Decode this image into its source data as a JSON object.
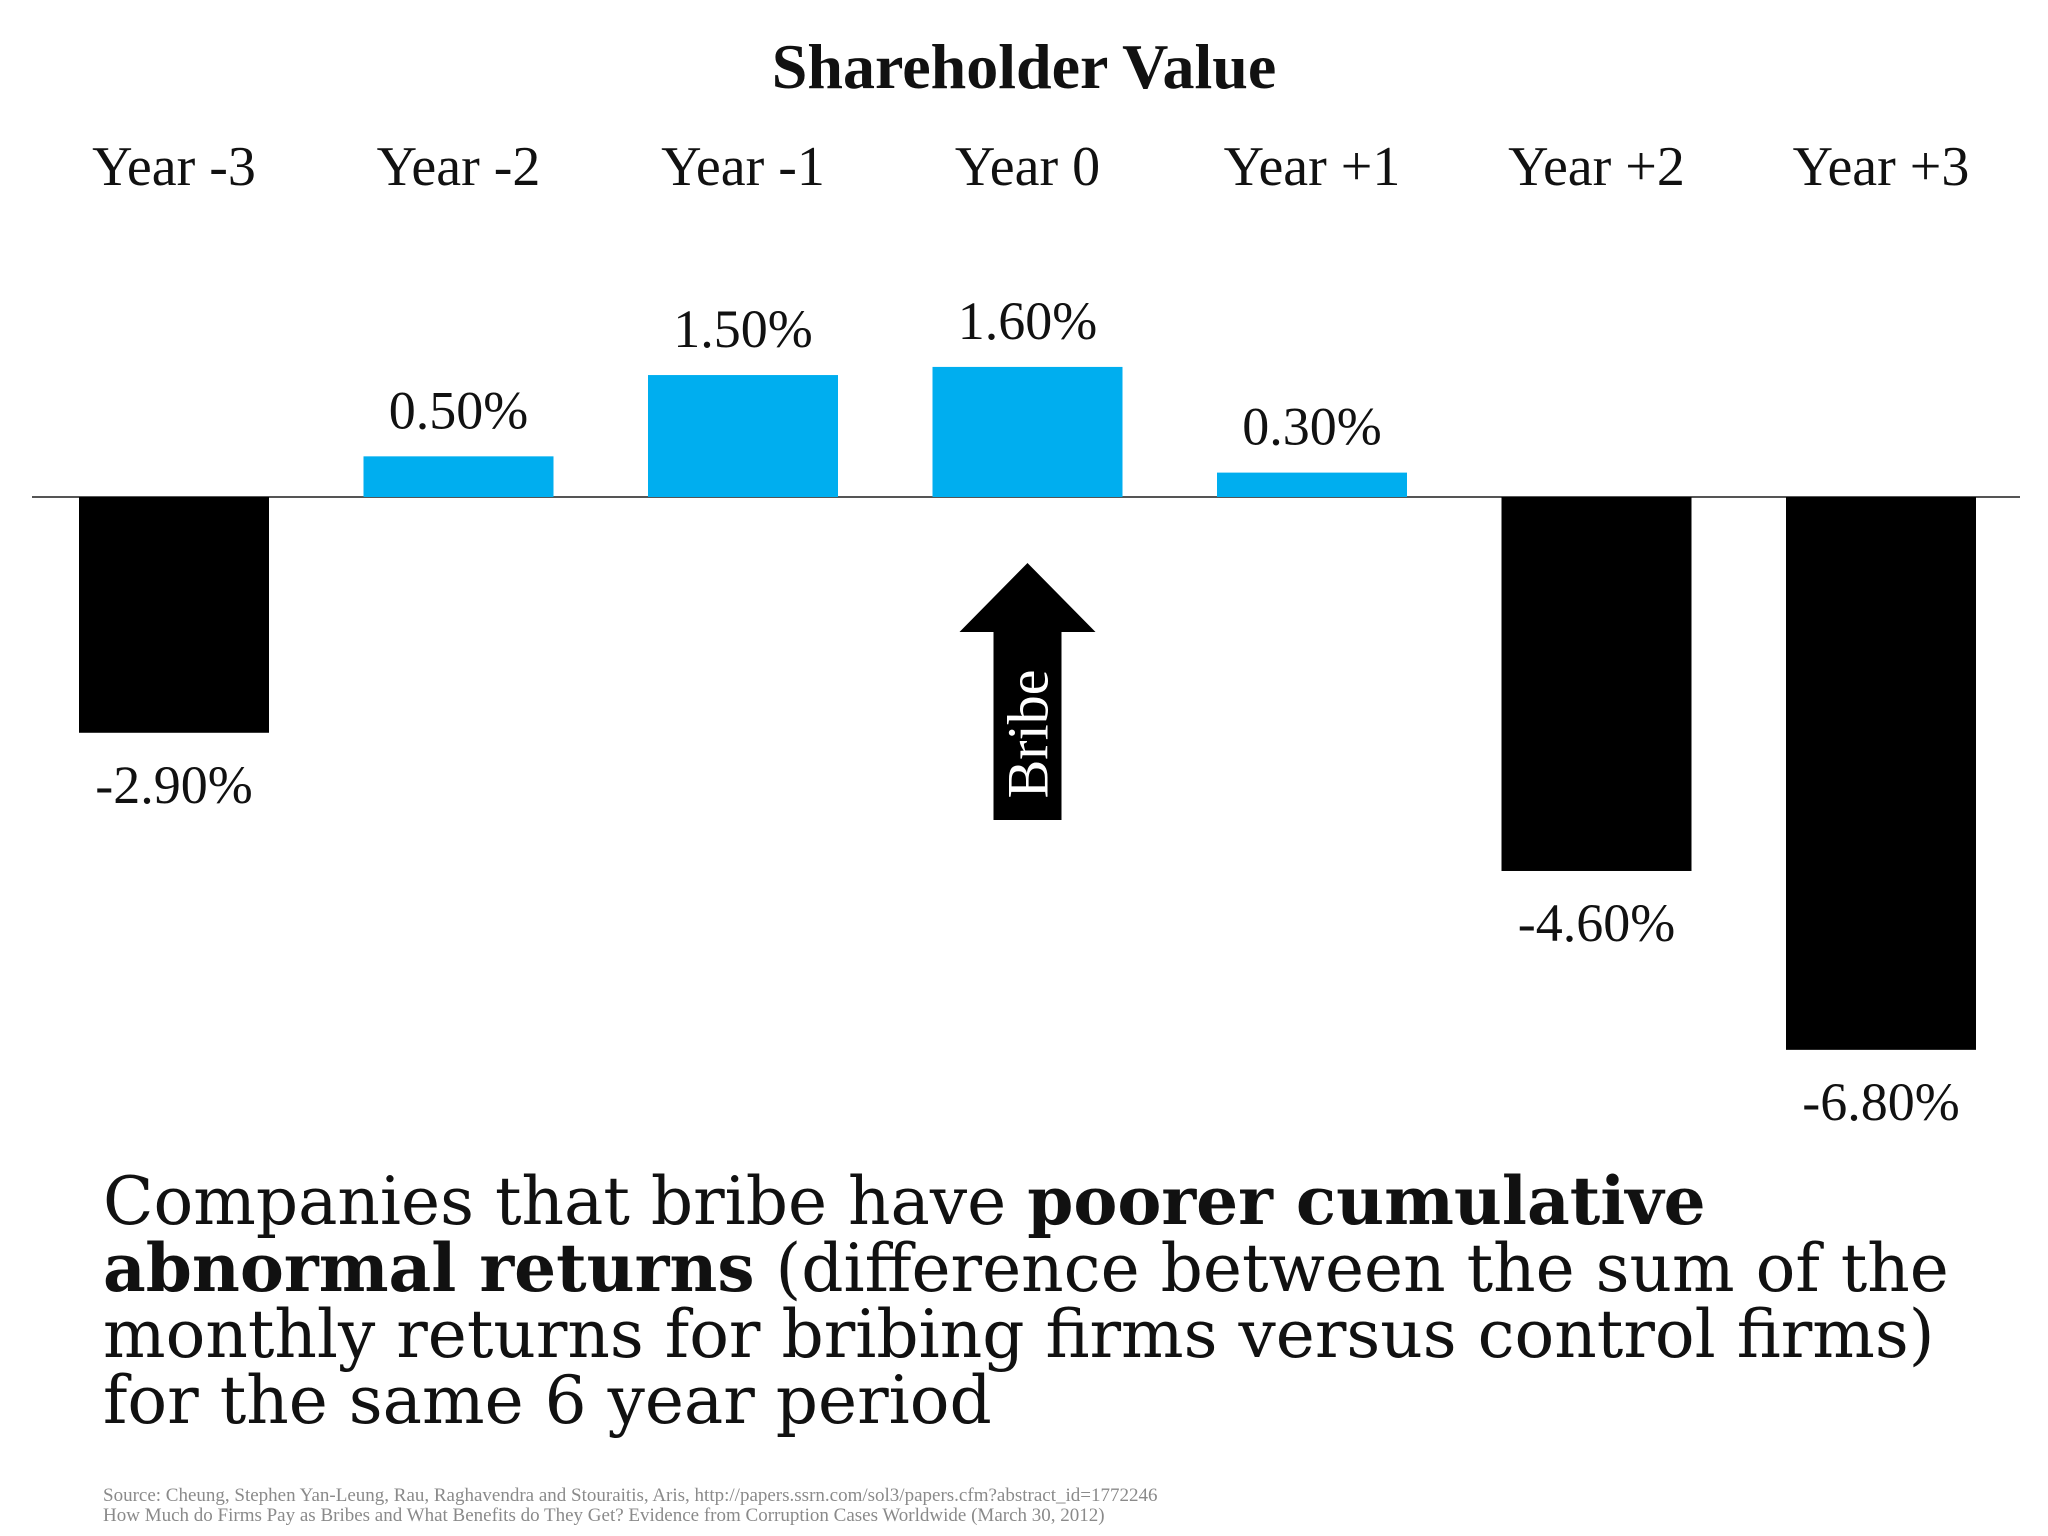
{
  "chart_data": {
    "type": "bar",
    "title": "Shareholder Value",
    "categories": [
      "Year -3",
      "Year -2",
      "Year -1",
      "Year 0",
      "Year +1",
      "Year +2",
      "Year +3"
    ],
    "values": [
      -2.9,
      0.5,
      1.5,
      1.6,
      0.3,
      -4.6,
      -6.8
    ],
    "value_labels": [
      "-2.90%",
      "0.50%",
      "1.50%",
      "1.60%",
      "0.30%",
      "-4.60%",
      "-6.80%"
    ],
    "annotation": {
      "text": "Bribe",
      "category": "Year 0"
    },
    "colors": {
      "positive": "#00aeef",
      "negative": "#000000",
      "axis": "#555555"
    },
    "ylim": [
      -6.8,
      1.6
    ],
    "grid": false,
    "legend": "none"
  },
  "caption": {
    "part1": "Companies that bribe have ",
    "bold": "poorer cumulative abnormal returns",
    "part2": " (difference between the sum of the monthly returns for bribing firms versus control firms) for the same 6 year period"
  },
  "source": {
    "line1": "Source: Cheung, Stephen Yan-Leung, Rau, Raghavendra and Stouraitis, Aris, http://papers.ssrn.com/sol3/papers.cfm?abstract_id=1772246",
    "line2": "How Much do Firms Pay as Bribes and What Benefits do They Get? Evidence from Corruption Cases Worldwide (March 30, 2012)"
  }
}
